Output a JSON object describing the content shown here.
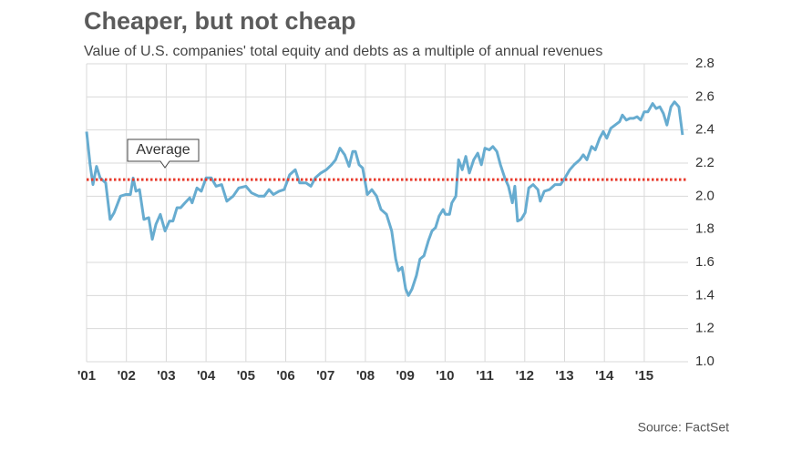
{
  "chart_data": {
    "type": "line",
    "title": "Cheaper, but not cheap",
    "subtitle": "Value of U.S. companies' total equity and debts as a multiple of annual revenues",
    "source": "Source: FactSet",
    "color": "#67acd0",
    "grid": true,
    "average": {
      "label": "Average",
      "value": 2.1,
      "color": "#e8392b"
    },
    "xlim": [
      2001,
      2016.1
    ],
    "xticks": [
      {
        "value": 2001,
        "label": "'01"
      },
      {
        "value": 2002,
        "label": "'02"
      },
      {
        "value": 2003,
        "label": "'03"
      },
      {
        "value": 2004,
        "label": "'04"
      },
      {
        "value": 2005,
        "label": "'05"
      },
      {
        "value": 2006,
        "label": "'06"
      },
      {
        "value": 2007,
        "label": "'07"
      },
      {
        "value": 2008,
        "label": "'08"
      },
      {
        "value": 2009,
        "label": "'09"
      },
      {
        "value": 2010,
        "label": "'10"
      },
      {
        "value": 2011,
        "label": "'11"
      },
      {
        "value": 2012,
        "label": "'12"
      },
      {
        "value": 2013,
        "label": "'13"
      },
      {
        "value": 2014,
        "label": "'14"
      },
      {
        "value": 2015,
        "label": "'15"
      }
    ],
    "ylim": [
      1,
      2.8
    ],
    "yticks": [
      {
        "value": 1,
        "label": "1.0"
      },
      1.2,
      1.4,
      1.6,
      1.8,
      {
        "value": 2,
        "label": "2.0"
      },
      2.2,
      2.4,
      2.6,
      2.8
    ],
    "x": [
      2001.0,
      2001.09,
      2001.16,
      2001.25,
      2001.34,
      2001.48,
      2001.59,
      2001.69,
      2001.85,
      2001.98,
      2002.1,
      2002.17,
      2002.24,
      2002.33,
      2002.44,
      2002.56,
      2002.65,
      2002.74,
      2002.85,
      2002.97,
      2003.08,
      2003.17,
      2003.27,
      2003.36,
      2003.47,
      2003.59,
      2003.65,
      2003.77,
      2003.88,
      2004.0,
      2004.13,
      2004.25,
      2004.39,
      2004.52,
      2004.68,
      2004.82,
      2005.0,
      2005.14,
      2005.32,
      2005.46,
      2005.58,
      2005.69,
      2005.83,
      2005.96,
      2006.1,
      2006.24,
      2006.35,
      2006.51,
      2006.63,
      2006.74,
      2006.88,
      2007.02,
      2007.15,
      2007.25,
      2007.36,
      2007.48,
      2007.59,
      2007.68,
      2007.75,
      2007.84,
      2007.93,
      2008.05,
      2008.16,
      2008.28,
      2008.39,
      2008.53,
      2008.66,
      2008.76,
      2008.83,
      2008.92,
      2009.01,
      2009.08,
      2009.17,
      2009.28,
      2009.37,
      2009.47,
      2009.58,
      2009.67,
      2009.76,
      2009.85,
      2009.95,
      2010.01,
      2010.11,
      2010.17,
      2010.27,
      2010.34,
      2010.43,
      2010.52,
      2010.61,
      2010.72,
      2010.82,
      2010.91,
      2011.0,
      2011.11,
      2011.2,
      2011.3,
      2011.39,
      2011.5,
      2011.59,
      2011.69,
      2011.75,
      2011.82,
      2011.91,
      2012.01,
      2012.1,
      2012.21,
      2012.33,
      2012.39,
      2012.49,
      2012.62,
      2012.76,
      2012.9,
      2013.01,
      2013.13,
      2013.24,
      2013.38,
      2013.47,
      2013.56,
      2013.68,
      2013.77,
      2013.88,
      2013.97,
      2014.06,
      2014.16,
      2014.27,
      2014.38,
      2014.45,
      2014.55,
      2014.64,
      2014.73,
      2014.82,
      2014.91,
      2015.0,
      2015.09,
      2015.21,
      2015.3,
      2015.39,
      2015.48,
      2015.57,
      2015.67,
      2015.76,
      2015.87,
      2015.96
    ],
    "values": [
      2.39,
      2.19,
      2.07,
      2.18,
      2.11,
      2.08,
      1.86,
      1.9,
      2.0,
      2.01,
      2.01,
      2.11,
      2.03,
      2.04,
      1.86,
      1.87,
      1.74,
      1.83,
      1.89,
      1.79,
      1.85,
      1.85,
      1.93,
      1.93,
      1.96,
      1.99,
      1.96,
      2.05,
      2.03,
      2.11,
      2.11,
      2.06,
      2.07,
      1.97,
      2.0,
      2.05,
      2.06,
      2.02,
      2.0,
      2.0,
      2.04,
      2.01,
      2.03,
      2.04,
      2.13,
      2.16,
      2.08,
      2.08,
      2.06,
      2.11,
      2.14,
      2.16,
      2.19,
      2.22,
      2.29,
      2.25,
      2.18,
      2.27,
      2.27,
      2.19,
      2.17,
      2.01,
      2.04,
      2.0,
      1.92,
      1.89,
      1.79,
      1.62,
      1.55,
      1.57,
      1.44,
      1.4,
      1.44,
      1.52,
      1.62,
      1.64,
      1.73,
      1.79,
      1.81,
      1.88,
      1.92,
      1.89,
      1.89,
      1.96,
      2.0,
      2.22,
      2.16,
      2.24,
      2.14,
      2.22,
      2.26,
      2.19,
      2.29,
      2.28,
      2.3,
      2.27,
      2.19,
      2.11,
      2.06,
      1.96,
      2.06,
      1.85,
      1.86,
      1.9,
      2.05,
      2.07,
      2.04,
      1.97,
      2.03,
      2.04,
      2.07,
      2.07,
      2.11,
      2.16,
      2.19,
      2.22,
      2.25,
      2.22,
      2.3,
      2.28,
      2.35,
      2.39,
      2.35,
      2.41,
      2.43,
      2.45,
      2.49,
      2.46,
      2.47,
      2.47,
      2.48,
      2.46,
      2.51,
      2.51,
      2.56,
      2.53,
      2.54,
      2.5,
      2.43,
      2.54,
      2.57,
      2.54,
      2.37
    ]
  }
}
